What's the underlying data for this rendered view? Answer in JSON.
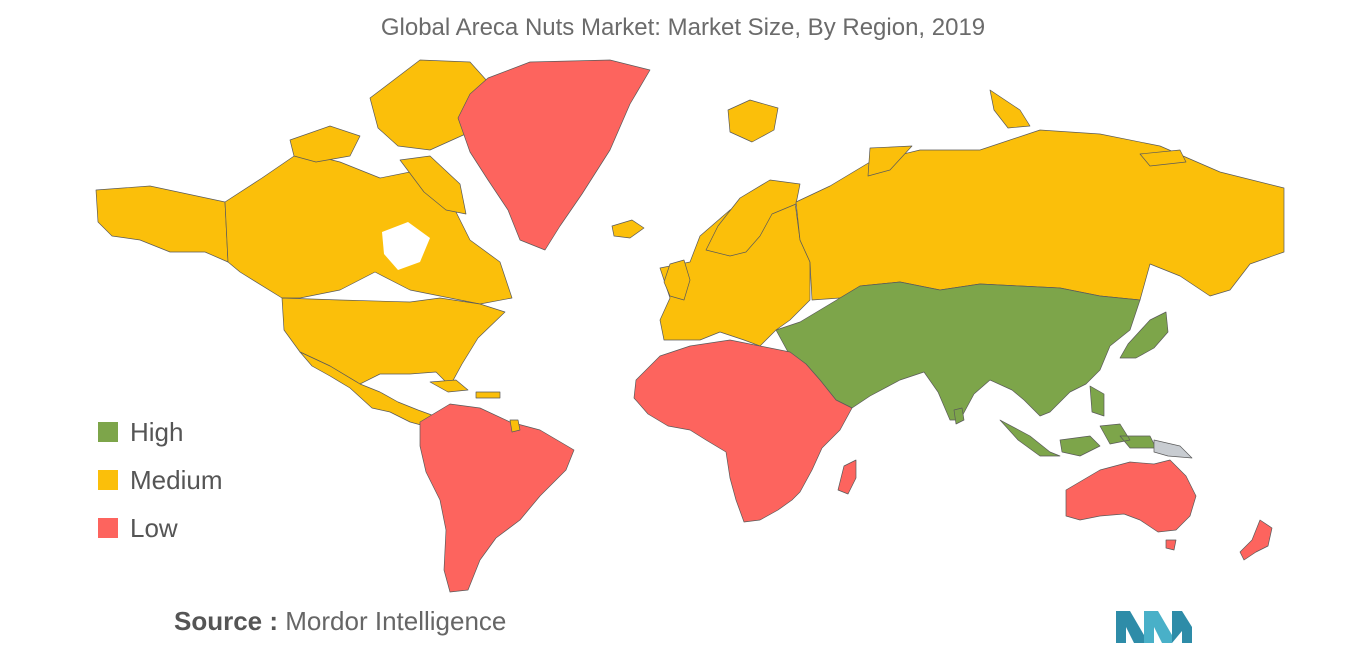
{
  "title": "Global Areca Nuts Market: Market Size, By Region, 2019",
  "legend": {
    "items": [
      {
        "label": "High",
        "color": "#7da54a"
      },
      {
        "label": "Medium",
        "color": "#fbbf0a"
      },
      {
        "label": "Low",
        "color": "#fd645e"
      }
    ]
  },
  "no_data_color": "#c8ccd1",
  "regions": [
    {
      "name": "North America",
      "level": "Medium"
    },
    {
      "name": "Greenland",
      "level": "Low"
    },
    {
      "name": "Central America & Caribbean",
      "level": "Medium"
    },
    {
      "name": "South America",
      "level": "Low"
    },
    {
      "name": "Europe",
      "level": "Medium"
    },
    {
      "name": "Russia",
      "level": "Medium"
    },
    {
      "name": "Africa",
      "level": "Low"
    },
    {
      "name": "Asia-Pacific",
      "level": "High"
    },
    {
      "name": "Australia & New Zealand",
      "level": "Low"
    }
  ],
  "source": {
    "prefix": "Source :",
    "name": "Mordor Intelligence"
  },
  "logo_icon": "mordor-intelligence-logo"
}
